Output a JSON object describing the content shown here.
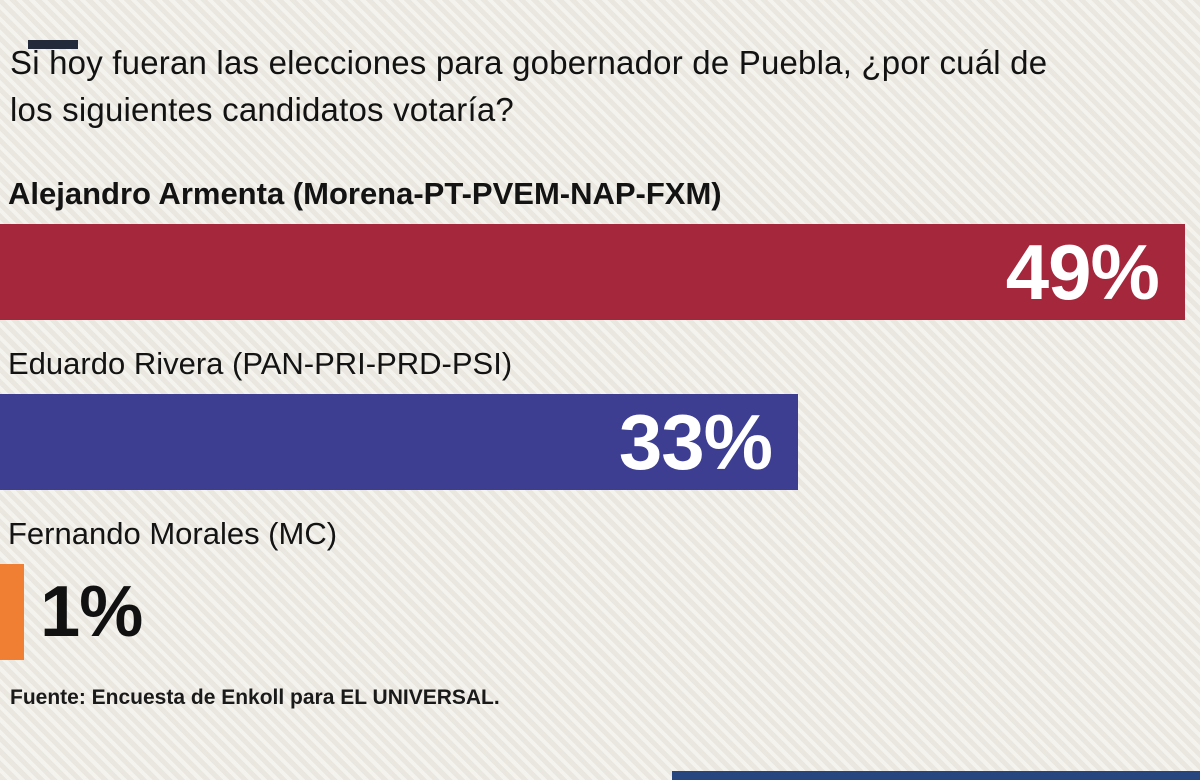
{
  "chart_data": {
    "type": "bar",
    "orientation": "horizontal",
    "title": "Si hoy fueran las elecciones para gobernador de Puebla, ¿por cuál de los siguientes candidatos votaría?",
    "categories": [
      "Alejandro Armenta (Morena-PT-PVEM-NAP-FXM)",
      "Eduardo Rivera (PAN-PRI-PRD-PSI)",
      "Fernando Morales (MC)"
    ],
    "values": [
      49,
      33,
      1
    ],
    "value_labels": [
      "49%",
      "33%",
      "1%"
    ],
    "colors": [
      "#a5273c",
      "#3d3d91",
      "#f07e33"
    ],
    "xlim": [
      0,
      50
    ],
    "legend": "none",
    "grid": "off",
    "source": "Fuente: Encuesta de Enkoll para EL UNIVERSAL."
  },
  "decor": {
    "top_mark_color": "#232b3a",
    "bottom_strip_color": "#27457e"
  }
}
